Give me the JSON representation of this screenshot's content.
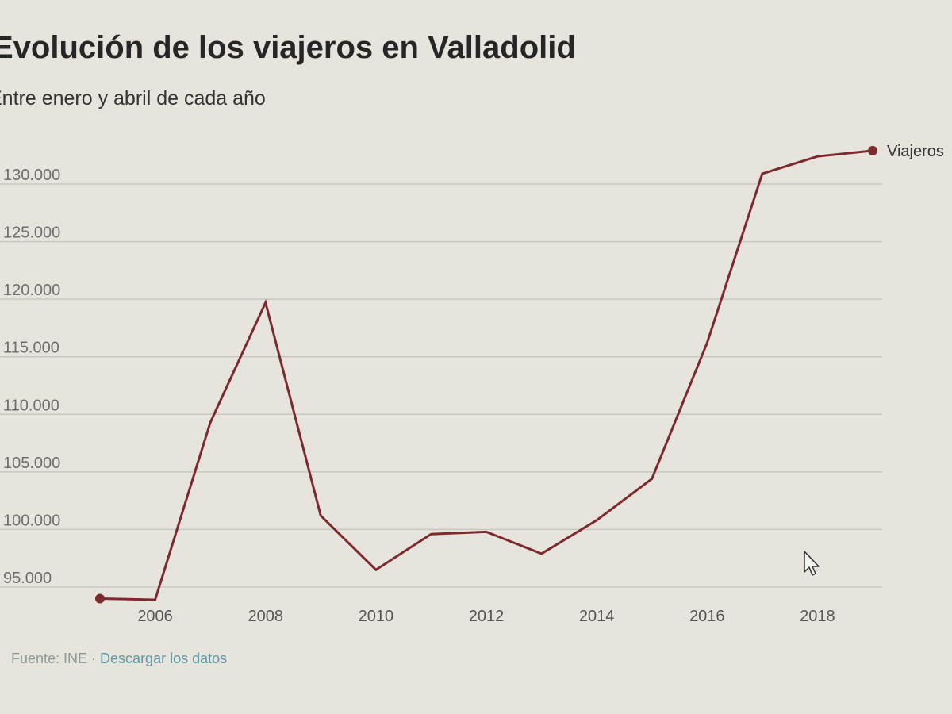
{
  "chart_data": {
    "type": "line",
    "title": "Evolución de los viajeros en Valladolid",
    "subtitle": "Entre enero y abril de cada año",
    "x": [
      2005,
      2006,
      2007,
      2008,
      2009,
      2010,
      2011,
      2012,
      2013,
      2014,
      2015,
      2016,
      2017,
      2018,
      2019
    ],
    "x_ticks": [
      "2006",
      "2008",
      "2010",
      "2012",
      "2014",
      "2016",
      "2018"
    ],
    "y_ticks": [
      "95.000",
      "100.000",
      "105.000",
      "110.000",
      "115.000",
      "120.000",
      "125.000",
      "130.000"
    ],
    "ylim": [
      94000,
      132000
    ],
    "series": [
      {
        "name": "Viajeros",
        "color": "#7d2a2e",
        "values": [
          94000,
          93900,
          109300,
          119700,
          101200,
          96500,
          99600,
          99800,
          97900,
          100800,
          104400,
          116200,
          130900,
          132400,
          132900
        ]
      }
    ],
    "grid": true,
    "legend": "end-of-line"
  },
  "footer": {
    "source": "Fuente: INE",
    "separator": " · ",
    "download": "Descargar los datos"
  },
  "colors": {
    "background": "#e6e4dd",
    "line": "#7d2a2e",
    "grid": "#c9c7c0",
    "link": "#5a9aa4"
  }
}
